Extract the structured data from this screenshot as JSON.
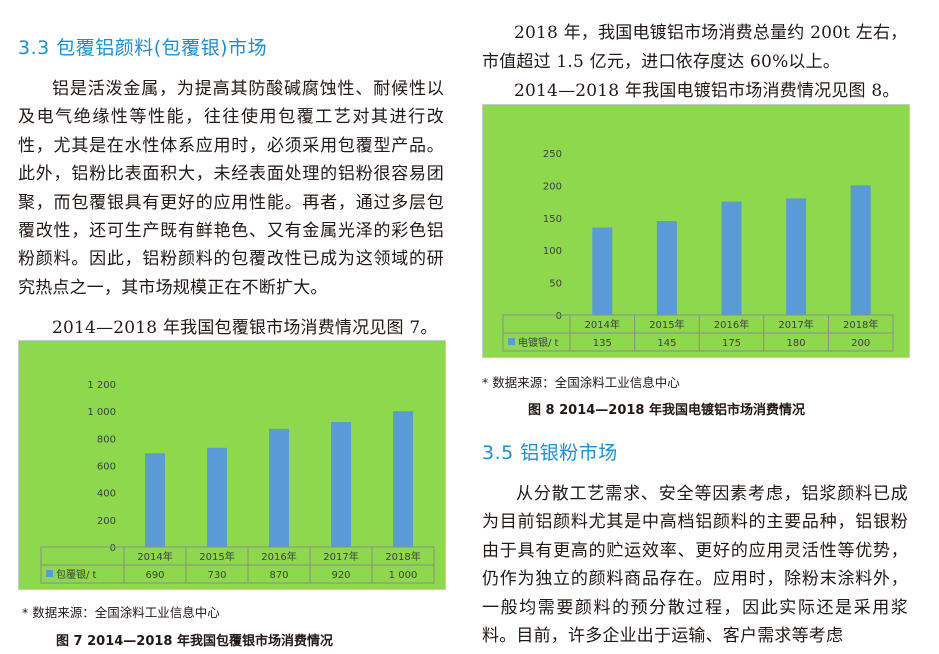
{
  "left_column": {
    "heading": "3.3 包覆铝颜料(包覆银)市场",
    "paragraph": "铝是活泼金属，为提高其防酸碱腐蚀性、耐候性以及电气绝缘性等性能，往往使用包覆工艺对其进行改性，尤其是在水性体系应用时，必须采用包覆型产品。此外，铝粉比表面积大，未经表面处理的铝粉很容易团聚，而包覆银具有更好的应用性能。再者，通过多层包覆改性，还可生产既有鲜艳色、又有金属光泽的彩色铝粉颜料。因此，铝粉颜料的包覆改性已成为这领域的研究热点之一，其市场规模正在不断扩大。",
    "figure_ref": "2014—2018 年我国包覆银市场消费情况见图 7。",
    "source_note": "* 数据来源：全国涂料工业信息中心",
    "caption": "图 7  2014—2018 年我国包覆银市场消费情况"
  },
  "right_column": {
    "intro_line1": "2018 年，我国电镀铝市场消费总量约 200t 左右，",
    "intro_line2": "市值超过 1.5 亿元，进口依存度达 60%以上。",
    "figure_ref": "2014—2018 年我国电镀铝市场消费情况见图 8。",
    "source_note": "* 数据来源：全国涂料工业信息中心",
    "caption": "图 8  2014—2018 年我国电镀铝市场消费情况",
    "heading": "3.5 铝银粉市场",
    "paragraph": "从分散工艺需求、安全等因素考虑，铝浆颜料已成为目前铝颜料尤其是中高档铝颜料的主要品种，铝银粉由于具有更高的贮运效率、更好的应用灵活性等优势，仍作为独立的颜料商品存在。应用时，除粉末涂料外，一般均需要颜料的预分散过程，因此实际还是采用浆料。目前，许多企业出于运输、客户需求等考虑"
  },
  "chart_data": [
    {
      "type": "bar",
      "categories": [
        "2014年",
        "2015年",
        "2016年",
        "2017年",
        "2018年"
      ],
      "series": [
        {
          "name": "包覆银/ t",
          "values": [
            690,
            730,
            870,
            920,
            1000
          ]
        }
      ],
      "table_values": [
        "690",
        "730",
        "870",
        "920",
        "1 000"
      ],
      "yticks": [
        "0",
        "200",
        "400",
        "600",
        "800",
        "1 000",
        "1 200"
      ],
      "ylim": [
        0,
        1200
      ],
      "bar_color": "#5b9bd5",
      "background": "#8dd84c",
      "grid": false
    },
    {
      "type": "bar",
      "categories": [
        "2014年",
        "2015年",
        "2016年",
        "2017年",
        "2018年"
      ],
      "series": [
        {
          "name": "电镀银/ t",
          "values": [
            135,
            145,
            175,
            180,
            200
          ]
        }
      ],
      "table_values": [
        "135",
        "145",
        "175",
        "180",
        "200"
      ],
      "yticks": [
        "0",
        "50",
        "100",
        "150",
        "200",
        "250"
      ],
      "ylim": [
        0,
        250
      ],
      "bar_color": "#5b9bd5",
      "background": "#8dd84c",
      "grid": false
    }
  ]
}
